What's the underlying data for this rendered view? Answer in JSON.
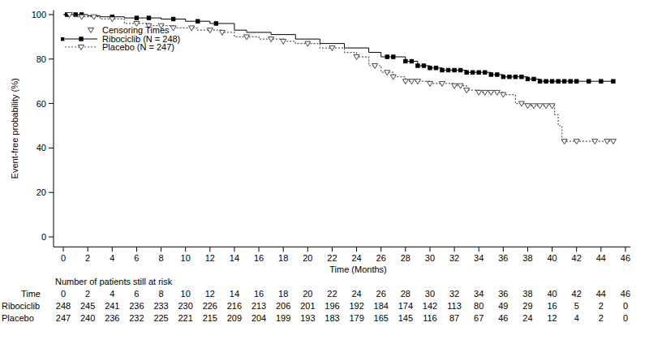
{
  "chart_data": {
    "type": "kaplan_meier",
    "x_label": "Time (Months)",
    "y_label": "Event-free probability (%)",
    "xlim": [
      -0.8,
      46.4
    ],
    "ylim": [
      -4.5,
      102
    ],
    "xticks": [
      0,
      2,
      4,
      6,
      8,
      10,
      12,
      14,
      16,
      18,
      20,
      22,
      24,
      26,
      28,
      30,
      32,
      34,
      36,
      38,
      40,
      42,
      44,
      46
    ],
    "yticks": [
      0,
      20,
      40,
      60,
      80,
      100
    ],
    "grid": false,
    "legend": "upper left",
    "censor_legend": "Censoring Times",
    "series": [
      {
        "name": "Ribociclib (N = 248)",
        "color": "#000000",
        "line_style": "solid",
        "marker": "square",
        "x": [
          0,
          2,
          3,
          5,
          8,
          10,
          12,
          14,
          15,
          17,
          19,
          21,
          23,
          25,
          26,
          28,
          29,
          30,
          31,
          33,
          35,
          36,
          38,
          39,
          45
        ],
        "values": [
          100,
          99.5,
          99,
          98.5,
          98,
          97,
          96,
          93,
          92,
          91,
          89,
          87,
          85,
          83,
          81,
          79,
          77,
          76,
          75,
          74,
          73,
          72,
          71,
          70,
          70
        ],
        "censor_x": [
          0.3,
          1,
          1.5,
          4,
          6,
          7,
          9,
          11,
          12.5,
          26.5,
          27,
          28,
          28.5,
          29,
          29.5,
          30,
          30.5,
          31,
          31.5,
          32,
          32.5,
          33,
          33.5,
          34,
          34.5,
          35,
          35.5,
          36,
          36.5,
          37,
          37.5,
          38,
          38.5,
          39,
          39.5,
          40,
          40.5,
          41,
          41.5,
          42,
          43,
          44,
          45
        ],
        "censor_values": [
          100,
          100,
          100,
          99,
          98.5,
          98.5,
          98,
          97,
          96,
          81,
          81,
          79,
          79,
          77,
          77,
          76,
          76,
          75,
          75,
          75,
          75,
          74,
          74,
          74,
          74,
          73,
          73,
          72,
          72,
          72,
          72,
          71,
          71,
          70,
          70,
          70,
          70,
          70,
          70,
          70,
          70,
          70,
          70
        ]
      },
      {
        "name": "Placebo (N = 247)",
        "color": "#555555",
        "line_style": "dotted",
        "marker": "triangle_down",
        "x": [
          0,
          1,
          3,
          5,
          7,
          9,
          11,
          13,
          14,
          16,
          18,
          19,
          21,
          23,
          24,
          25,
          26,
          27,
          28,
          30,
          32,
          33,
          34,
          36,
          37,
          38,
          40.2,
          40.5,
          40.8,
          45
        ],
        "values": [
          100,
          99,
          98,
          96,
          95,
          94,
          93,
          92,
          90,
          89,
          88,
          87,
          85,
          83,
          81,
          77,
          74,
          72,
          70,
          69,
          68,
          66,
          65,
          64,
          60,
          59,
          55,
          50,
          43,
          43
        ],
        "censor_x": [
          0.5,
          1.5,
          2.5,
          4,
          6,
          7,
          8,
          9,
          10.5,
          12,
          13,
          15,
          17,
          18,
          20,
          22,
          24,
          25.5,
          26.5,
          27,
          28,
          28.5,
          29,
          30,
          31,
          32,
          32.5,
          33,
          34,
          34.5,
          35,
          35.5,
          36,
          37.5,
          38,
          38.5,
          39,
          39.5,
          40,
          41,
          42,
          43.5,
          44.5,
          45
        ],
        "censor_values": [
          100,
          99,
          99,
          98,
          96,
          95,
          95,
          94,
          94,
          93,
          92,
          90,
          89,
          88,
          87,
          85,
          81,
          77,
          74,
          72,
          70,
          70,
          70,
          69,
          69,
          68,
          68,
          66,
          65,
          65,
          65,
          65,
          64,
          60,
          59,
          59,
          59,
          59,
          59,
          43,
          43,
          43,
          43,
          43
        ]
      }
    ],
    "at_risk": {
      "title": "Number of patients still at risk",
      "header": "Time",
      "times": [
        0,
        2,
        4,
        6,
        8,
        10,
        12,
        14,
        16,
        18,
        20,
        22,
        24,
        26,
        28,
        30,
        32,
        34,
        36,
        38,
        40,
        42,
        44,
        46
      ],
      "rows": [
        {
          "name": "Ribociclib",
          "values": [
            248,
            245,
            241,
            236,
            233,
            230,
            226,
            216,
            213,
            206,
            201,
            196,
            192,
            184,
            174,
            142,
            113,
            80,
            49,
            29,
            16,
            5,
            2,
            0
          ]
        },
        {
          "name": "Placebo",
          "values": [
            247,
            240,
            236,
            232,
            225,
            221,
            215,
            209,
            204,
            199,
            193,
            183,
            179,
            165,
            145,
            116,
            87,
            67,
            46,
            24,
            12,
            4,
            2,
            0
          ]
        }
      ]
    }
  }
}
